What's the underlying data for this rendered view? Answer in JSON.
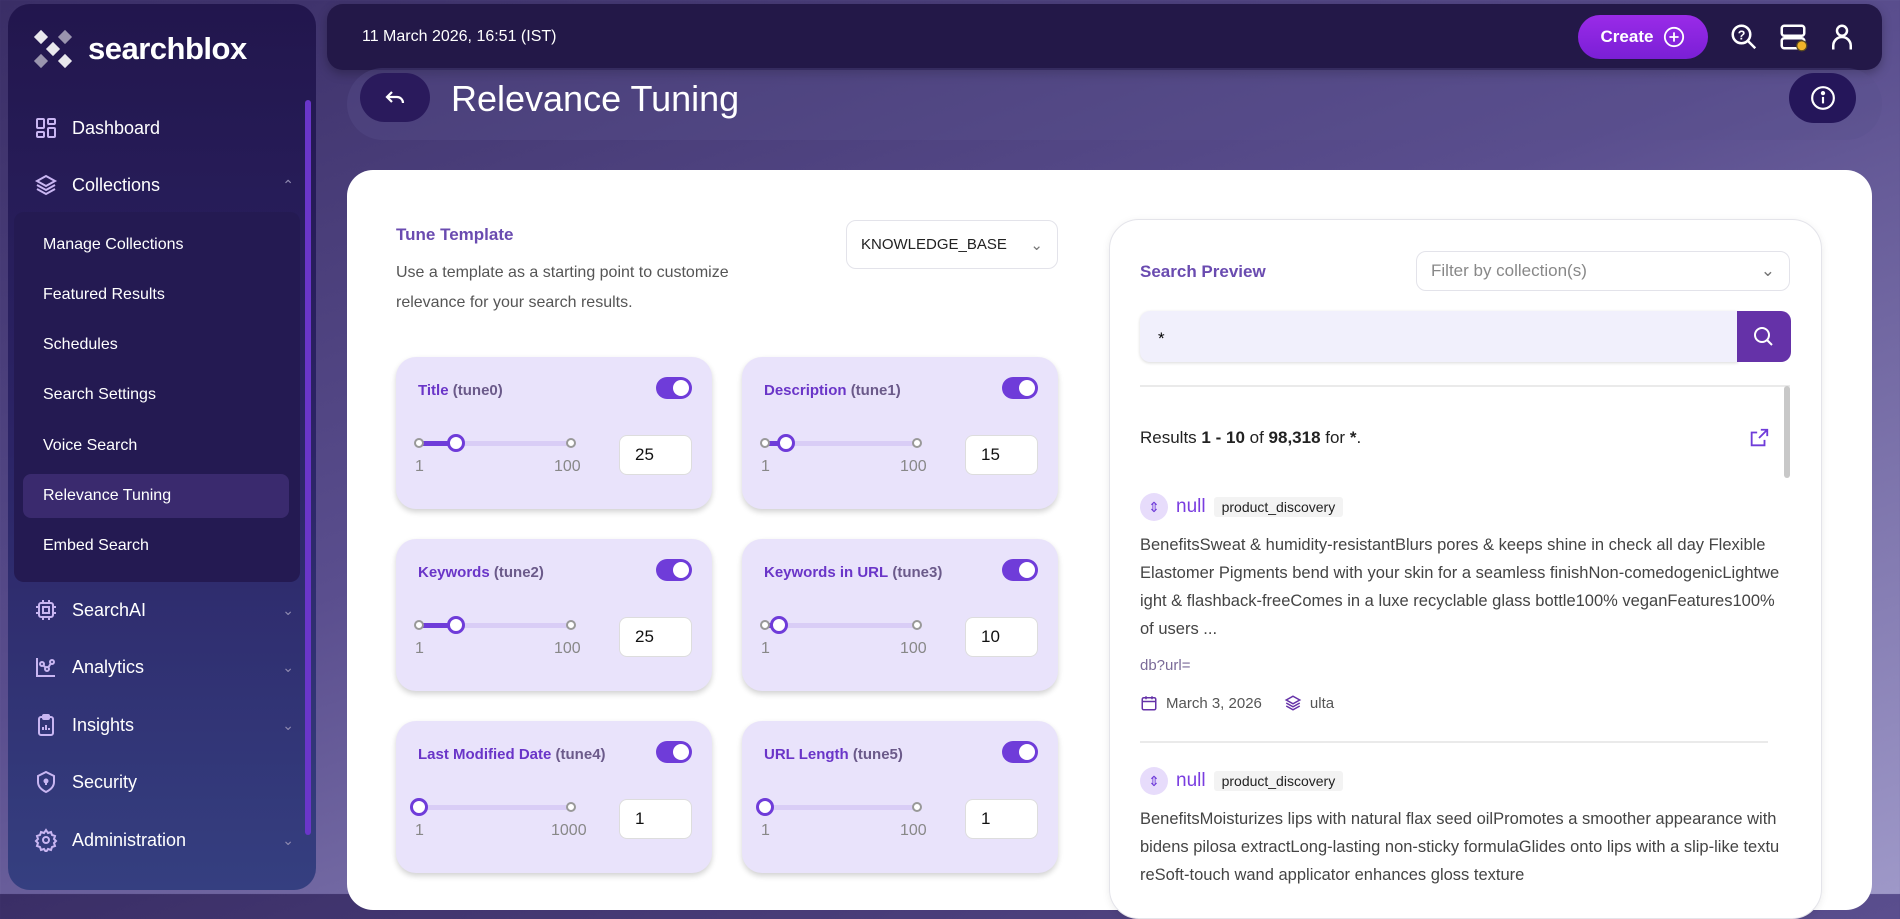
{
  "brand": {
    "name": "searchblox"
  },
  "sidebar": {
    "items": [
      {
        "label": "Dashboard",
        "icon": "dashboard-icon"
      },
      {
        "label": "Collections",
        "icon": "layers-icon",
        "expanded": true
      },
      {
        "label": "SearchAI",
        "icon": "chip-icon"
      },
      {
        "label": "Analytics",
        "icon": "analytics-icon"
      },
      {
        "label": "Insights",
        "icon": "clipboard-chart-icon"
      },
      {
        "label": "Security",
        "icon": "shield-icon"
      },
      {
        "label": "Administration",
        "icon": "gear-icon"
      }
    ],
    "sub_items": [
      "Manage Collections",
      "Featured Results",
      "Schedules",
      "Search Settings",
      "Voice Search",
      "Relevance Tuning",
      "Embed Search"
    ],
    "active_sub": "Relevance Tuning"
  },
  "topbar": {
    "datetime": "11 March 2026, 16:51 (IST)",
    "create_label": "Create",
    "icons": [
      "help-search-icon",
      "server-status-icon",
      "user-icon"
    ],
    "status_dot_color": "#f0b429"
  },
  "page": {
    "title": "Relevance Tuning"
  },
  "template": {
    "heading": "Tune Template",
    "description": "Use a template as a starting point to customize relevance for your search results.",
    "selected": "KNOWLEDGE_BASE"
  },
  "tunes": [
    {
      "name": "Title",
      "key": "(tune0)",
      "enabled": true,
      "min": 1,
      "max": 100,
      "value": 25,
      "min_label": "1",
      "max_label": "100",
      "value_label": "25"
    },
    {
      "name": "Description",
      "key": "(tune1)",
      "enabled": true,
      "min": 1,
      "max": 100,
      "value": 15,
      "min_label": "1",
      "max_label": "100",
      "value_label": "15"
    },
    {
      "name": "Keywords",
      "key": "(tune2)",
      "enabled": true,
      "min": 1,
      "max": 100,
      "value": 25,
      "min_label": "1",
      "max_label": "100",
      "value_label": "25"
    },
    {
      "name": "Keywords in URL",
      "key": "(tune3)",
      "enabled": true,
      "min": 1,
      "max": 100,
      "value": 10,
      "min_label": "1",
      "max_label": "100",
      "value_label": "10"
    },
    {
      "name": "Last Modified Date",
      "key": "(tune4)",
      "enabled": true,
      "min": 1,
      "max": 1000,
      "value": 1,
      "min_label": "1",
      "max_label": "1000",
      "value_label": "1"
    },
    {
      "name": "URL Length",
      "key": "(tune5)",
      "enabled": true,
      "min": 1,
      "max": 100,
      "value": 1,
      "min_label": "1",
      "max_label": "100",
      "value_label": "1"
    }
  ],
  "preview": {
    "heading": "Search Preview",
    "filter_placeholder": "Filter by collection(s)",
    "query": "*",
    "summary": {
      "prefix": "Results ",
      "range": "1 - 10",
      "of": " of ",
      "total": "98,318",
      "for": " for ",
      "query": "*",
      "end": "."
    },
    "results": [
      {
        "title": "null",
        "tag": "product_discovery",
        "description": "BenefitsSweat & humidity-resistantBlurs pores & keeps shine in check all day Flexible Elastomer Pigments bend with your skin for a seamless finishNon-comedogenicLightweight & flashback-freeComes in a luxe recyclable glass bottle100% veganFeatures100% of users ...",
        "url": "db?url=",
        "date": "March 3, 2026",
        "collection": "ulta"
      },
      {
        "title": "null",
        "tag": "product_discovery",
        "description": "BenefitsMoisturizes lips with natural flax seed oilPromotes a smoother appearance with bidens pilosa extractLong-lasting non-sticky formulaGlides onto lips with a slip-like textureSoft-touch wand applicator enhances gloss texture"
      }
    ]
  }
}
